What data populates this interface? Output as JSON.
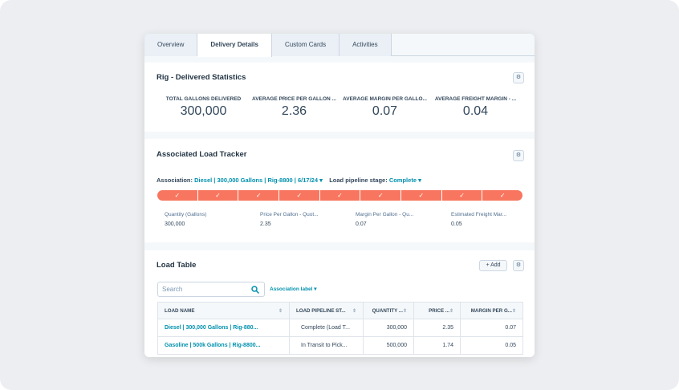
{
  "tabs": [
    "Overview",
    "Delivery Details",
    "Custom Cards",
    "Activities"
  ],
  "stats_card": {
    "title": "Rig - Delivered Statistics",
    "stats": [
      {
        "label": "TOTAL GALLONS DELIVERED",
        "value": "300,000"
      },
      {
        "label": "AVERAGE PRICE PER GALLON ...",
        "value": "2.36"
      },
      {
        "label": "AVERAGE MARGIN PER GALLO...",
        "value": "0.07"
      },
      {
        "label": "AVERAGE FREIGHT MARGIN - ...",
        "value": "0.04"
      }
    ]
  },
  "tracker_card": {
    "title": "Associated Load Tracker",
    "association_label": "Association:",
    "association_value": "Diesel | 300,000 Gallons | Rig-8800 | 6/17/24",
    "stage_label": "Load pipeline stage:",
    "stage_value": "Complete",
    "properties": [
      {
        "label": "Quantity (Gallons)",
        "value": "300,000"
      },
      {
        "label": "Price Per Gallon - Quot...",
        "value": "2.35"
      },
      {
        "label": "Margin Per Gallon - Qu...",
        "value": "0.07"
      },
      {
        "label": "Estimated Freight Mar...",
        "value": "0.05"
      }
    ]
  },
  "table_card": {
    "title": "Load Table",
    "add_button": "Add",
    "search_placeholder": "Search",
    "filter": "Association label",
    "table": {
      "header": [
        "LOAD NAME",
        "LOAD PIPELINE ST...",
        "QUANTITY ...",
        "PRICE ...",
        "MARGIN PER G..."
      ],
      "rows": [
        [
          "Diesel | 300,000 Gallons | Rig-880...",
          "Complete (Load T...",
          "300,000",
          "2.35",
          "0.07"
        ],
        [
          "Gasoline | 500k Gallons | Rig-8800...",
          "In Transit to Pick...",
          "500,000",
          "1.74",
          "0.05"
        ]
      ]
    }
  }
}
